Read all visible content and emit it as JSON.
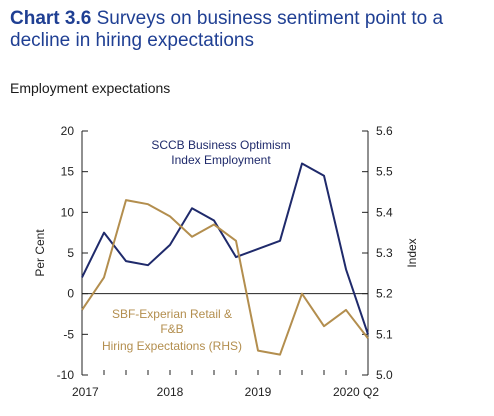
{
  "title_number": "Chart 3.6",
  "title_text": "Surveys on business sentiment point to a decline in hiring expectations",
  "subtitle": "Employment expectations",
  "colors": {
    "title": "#1f3f93",
    "sccb": "#1f2a6b",
    "sbf": "#b38e4e",
    "axis": "#222222"
  },
  "chart_data": {
    "type": "line",
    "grid": false,
    "x": [
      "2017Q1",
      "2017Q2",
      "2017Q3",
      "2017Q4",
      "2018Q1",
      "2018Q2",
      "2018Q3",
      "2018Q4",
      "2019Q1",
      "2019Q2",
      "2019Q3",
      "2019Q4",
      "2020Q1",
      "2020Q2"
    ],
    "x_tick_labels": [
      "2017",
      "2018",
      "2019",
      "2020 Q2"
    ],
    "ylabel": "Per Cent",
    "ylim": [
      -10,
      20
    ],
    "yticks": [
      -10,
      -5,
      0,
      5,
      10,
      15,
      20
    ],
    "y2label": "Index",
    "y2lim": [
      5.0,
      5.6
    ],
    "y2ticks": [
      "5.0",
      "5.1",
      "5.2",
      "5.3",
      "5.4",
      "5.5",
      "5.6"
    ],
    "series": [
      {
        "name": "SCCB Business Optimism Index Employment",
        "label_lines": [
          "SCCB Business Optimism",
          "Index Employment"
        ],
        "axis": "left",
        "values": [
          2,
          7.5,
          4,
          3.5,
          6,
          10.5,
          9,
          4.5,
          5.5,
          6.5,
          16,
          14.5,
          3,
          -5
        ]
      },
      {
        "name": "SBF-Experian Retail & F&B Hiring Expectations (RHS)",
        "label_lines": [
          "SBF-Experian Retail &",
          "F&B",
          "Hiring Expectations (RHS)"
        ],
        "axis": "right",
        "values": [
          5.16,
          5.24,
          5.43,
          5.42,
          5.39,
          5.34,
          5.37,
          5.33,
          5.06,
          5.05,
          5.2,
          5.12,
          5.16,
          5.09
        ]
      }
    ]
  }
}
